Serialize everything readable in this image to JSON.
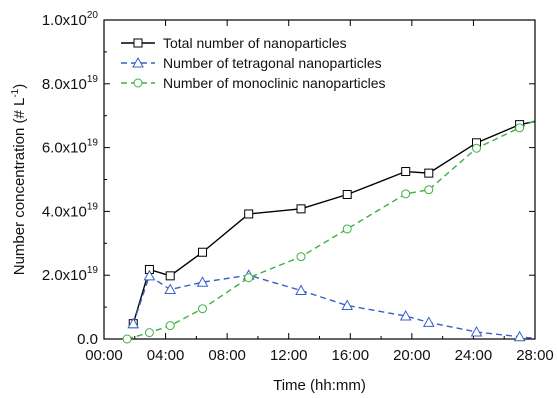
{
  "chart_data": {
    "type": "line",
    "title": "",
    "xlabel": "Time (hh:mm)",
    "ylabel": "Number concentration (# L",
    "ylabel_superscript": "-1",
    "ylabel_suffix": ")",
    "x_unit": "hours",
    "xlim": [
      0,
      28
    ],
    "ylim": [
      0,
      1e+20
    ],
    "x_ticks": [
      0,
      4,
      8,
      12,
      16,
      20,
      24,
      28
    ],
    "x_tick_labels": [
      "00:00",
      "04:00",
      "08:00",
      "12:00",
      "16:00",
      "20:00",
      "24:00",
      "28:00"
    ],
    "y_ticks": [
      0,
      2e+19,
      4e+19,
      6e+19,
      8e+19,
      1e+20
    ],
    "y_tick_labels": [
      {
        "base": "0.0",
        "exp": ""
      },
      {
        "base": "2.0x10",
        "exp": "19"
      },
      {
        "base": "4.0x10",
        "exp": "19"
      },
      {
        "base": "6.0x10",
        "exp": "19"
      },
      {
        "base": "8.0x10",
        "exp": "19"
      },
      {
        "base": "1.0x10",
        "exp": "20"
      }
    ],
    "grid": false,
    "legend_position": "top-left",
    "series": [
      {
        "name": "Total number of nanoparticles",
        "color": "#000000",
        "dash": "solid",
        "marker": "square",
        "x": [
          1.9,
          2.95,
          4.3,
          6.4,
          9.4,
          12.8,
          15.8,
          19.6,
          21.1,
          24.2,
          27.0,
          28.0
        ],
        "y": [
          4.8e+18,
          2.18e+19,
          1.98e+19,
          2.72e+19,
          3.92e+19,
          4.08e+19,
          4.53e+19,
          5.25e+19,
          5.2e+19,
          6.15e+19,
          6.72e+19,
          6.82e+19
        ]
      },
      {
        "name": "Number of tetragonal nanoparticles",
        "color": "#3b5fc9",
        "dash": "dashed",
        "marker": "triangle",
        "x": [
          1.9,
          2.95,
          4.3,
          6.4,
          9.4,
          12.8,
          15.8,
          19.6,
          21.1,
          24.2,
          27.0,
          28.0
        ],
        "y": [
          4.8e+18,
          1.98e+19,
          1.55e+19,
          1.78e+19,
          2e+19,
          1.52e+19,
          1.05e+19,
          7.2e+18,
          5.2e+18,
          2.2e+18,
          7e+17,
          2e+17
        ]
      },
      {
        "name": "Number of monoclinic nanoparticles",
        "color": "#3cb043",
        "dash": "dashed",
        "marker": "circle",
        "x": [
          1.5,
          2.95,
          4.3,
          6.4,
          9.4,
          12.8,
          15.8,
          19.6,
          21.1,
          24.2,
          27.0,
          28.0
        ],
        "y": [
          0.0,
          2e+18,
          4.2e+18,
          9.5e+18,
          1.92e+19,
          2.58e+19,
          3.45e+19,
          4.55e+19,
          4.68e+19,
          5.98e+19,
          6.62e+19,
          6.85e+19
        ]
      }
    ]
  }
}
